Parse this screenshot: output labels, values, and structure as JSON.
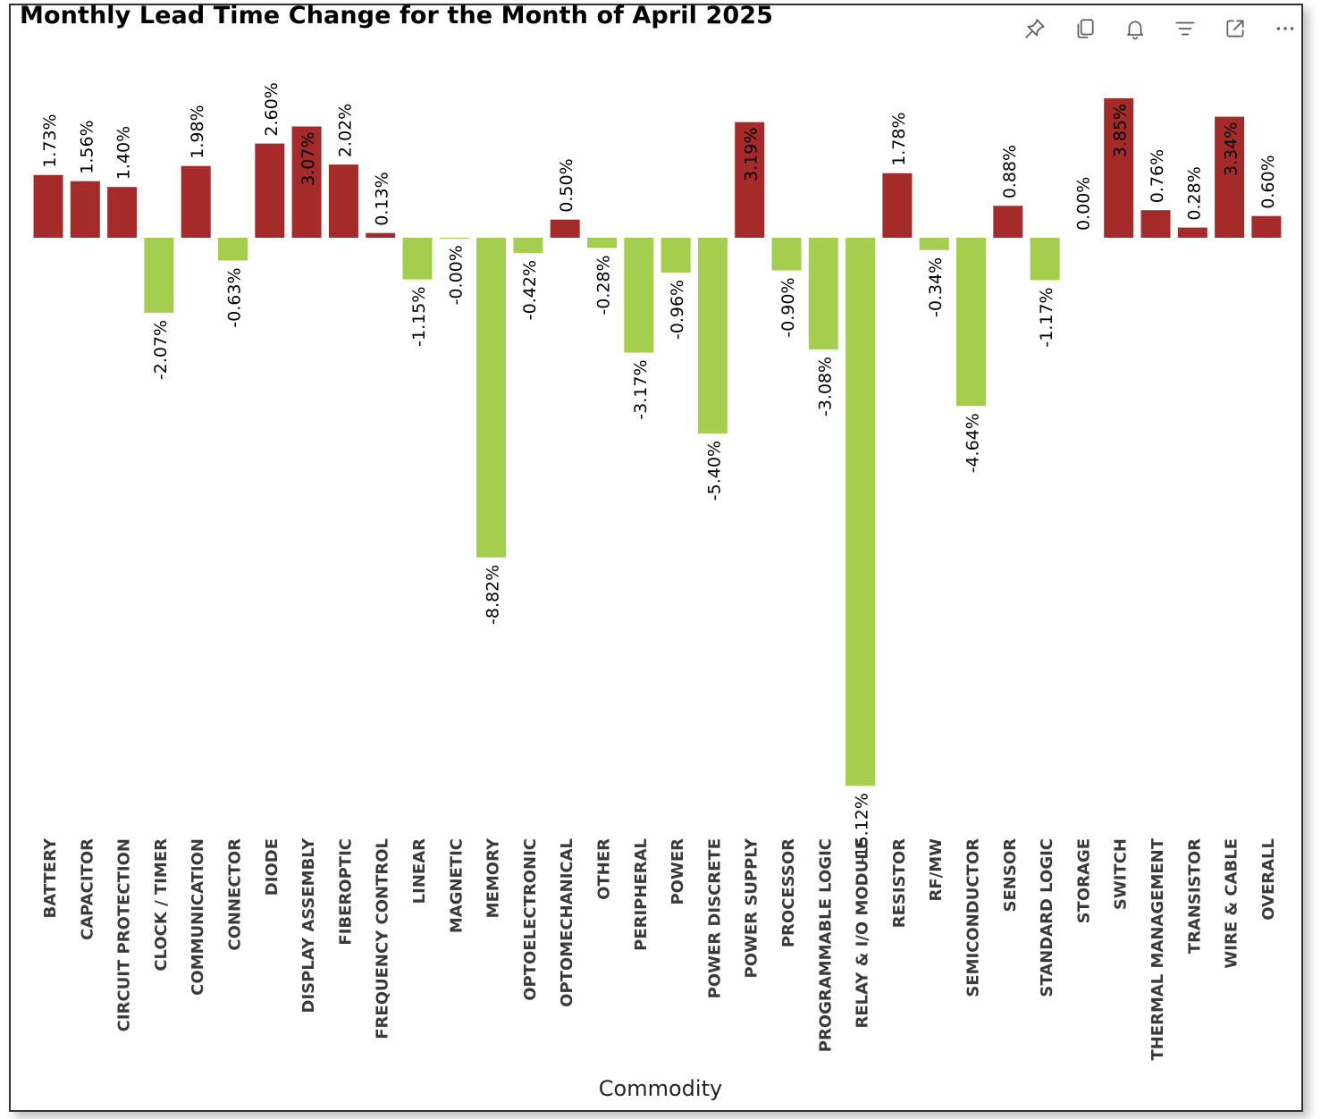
{
  "title": "Monthly Lead Time Change for the Month of April 2025",
  "toolbar": {
    "icons": [
      "pin-icon",
      "copy-icon",
      "bell-icon",
      "filter-icon",
      "focus-mode-icon",
      "more-options-icon"
    ]
  },
  "colors": {
    "positive": "#A52A2A",
    "negative": "#A6CE4E",
    "label": "#000000",
    "axis_label": "#3B3A39"
  },
  "chart_data": {
    "type": "bar",
    "title": "Monthly Lead Time Change for the Month of April 2025",
    "xlabel": "Commodity",
    "ylabel": "",
    "categories": [
      "BATTERY",
      "CAPACITOR",
      "CIRCUIT PROTECTION",
      "CLOCK / TIMER",
      "COMMUNICATION",
      "CONNECTOR",
      "DIODE",
      "DISPLAY ASSEMBLY",
      "FIBEROPTIC",
      "FREQUENCY CONTROL",
      "LINEAR",
      "MAGNETIC",
      "MEMORY",
      "OPTOELECTRONIC",
      "OPTOMECHANICAL",
      "OTHER",
      "PERIPHERAL",
      "POWER",
      "POWER DISCRETE",
      "POWER SUPPLY",
      "PROCESSOR",
      "PROGRAMMABLE LOGIC",
      "RELAY & I/O MODULE",
      "RESISTOR",
      "RF/MW",
      "SEMICONDUCTOR",
      "SENSOR",
      "STANDARD LOGIC",
      "STORAGE",
      "SWITCH",
      "THERMAL MANAGEMENT",
      "TRANSISTOR",
      "WIRE & CABLE",
      "OVERALL"
    ],
    "values": [
      1.73,
      1.56,
      1.4,
      -2.07,
      1.98,
      -0.63,
      2.6,
      3.07,
      2.02,
      0.13,
      -1.15,
      -0.004,
      -8.82,
      -0.42,
      0.5,
      -0.28,
      -3.17,
      -0.96,
      -5.4,
      3.19,
      -0.9,
      -3.08,
      -15.12,
      1.78,
      -0.34,
      -4.64,
      0.88,
      -1.17,
      0.0,
      3.85,
      0.76,
      0.28,
      3.34,
      0.6
    ],
    "labels": [
      "1.73%",
      "1.56%",
      "1.40%",
      "-2.07%",
      "1.98%",
      "-0.63%",
      "2.60%",
      "3.07%",
      "2.02%",
      "0.13%",
      "-1.15%",
      "-0.00%",
      "-8.82%",
      "-0.42%",
      "0.50%",
      "-0.28%",
      "-3.17%",
      "-0.96%",
      "-5.40%",
      "3.19%",
      "-0.90%",
      "-3.08%",
      "-15.12%",
      "1.78%",
      "-0.34%",
      "-4.64%",
      "0.88%",
      "-1.17%",
      "0.00%",
      "3.85%",
      "0.76%",
      "0.28%",
      "3.34%",
      "0.60%"
    ],
    "inside_labels": [
      "DISPLAY ASSEMBLY",
      "POWER SUPPLY",
      "RELAY & I/O MODULE",
      "SWITCH",
      "WIRE & CABLE"
    ],
    "ylim": [
      -15.12,
      3.85
    ],
    "grid": false,
    "legend": "none"
  }
}
